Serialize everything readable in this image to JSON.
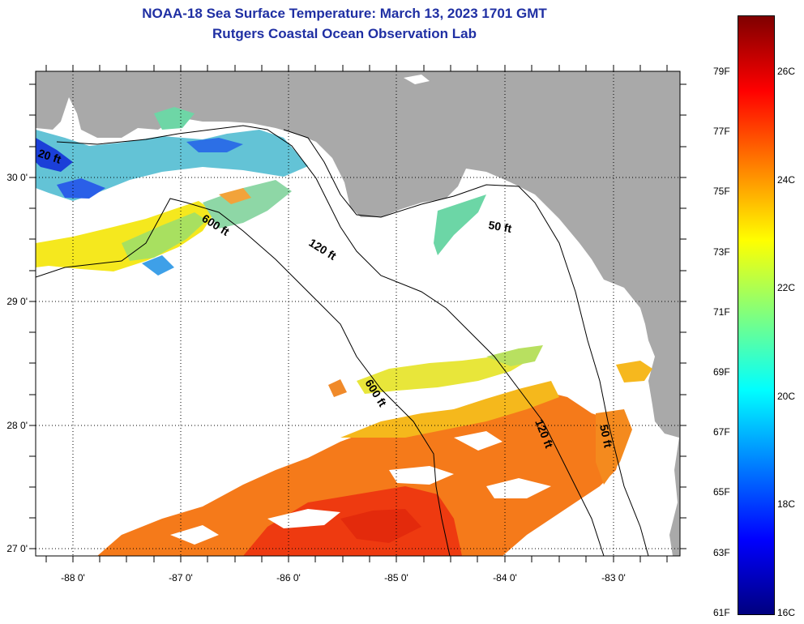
{
  "title": {
    "line1": "NOAA-18 Sea Surface Temperature:  March 13, 2023 1701 GMT",
    "line2": "Rutgers Coastal Ocean Observation Lab"
  },
  "map": {
    "lon_ticks": [
      "-88 0'",
      "-87 0'",
      "-86 0'",
      "-85 0'",
      "-84 0'",
      "-83 0'"
    ],
    "lat_ticks": [
      "30 0'",
      "29 0'",
      "28 0'",
      "27 0'"
    ],
    "contour_labels": [
      "600 ft",
      "120 ft",
      "600 ft",
      "120 ft",
      "50 ft",
      "50 ft",
      "20 ft"
    ],
    "colors": {
      "land": "#a9a9a9",
      "ocean_nodata": "#ffffff",
      "contour": "#000000"
    }
  },
  "colorbar": {
    "fahrenheit_labels": [
      "79F",
      "77F",
      "75F",
      "73F",
      "71F",
      "69F",
      "67F",
      "65F",
      "63F",
      "61F"
    ],
    "celsius_labels": [
      "26C",
      "24C",
      "22C",
      "20C",
      "18C",
      "16C"
    ],
    "scale": [
      "#00007f",
      "#0000ff",
      "#007fff",
      "#00ffff",
      "#7fff7f",
      "#ffff00",
      "#ff7f00",
      "#ff0000",
      "#7f0000"
    ]
  }
}
